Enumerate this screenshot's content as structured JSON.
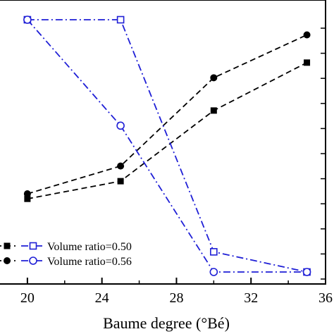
{
  "chart_data": {
    "type": "line",
    "xlabel": "Baume degree (°Bé)",
    "ylabel": "",
    "xlim": [
      18,
      36
    ],
    "ylim": [
      0,
      100
    ],
    "xticks": [
      20,
      24,
      28,
      32,
      36
    ],
    "x": [
      20,
      25,
      30,
      35
    ],
    "grid": false,
    "legend_position": "bottom-left",
    "series": [
      {
        "name": "",
        "axis": "left",
        "marker": "filled-square",
        "color": "#000000",
        "dash": "dashed",
        "values": [
          29,
          36,
          64,
          83
        ]
      },
      {
        "name": "",
        "axis": "left",
        "marker": "filled-circle",
        "color": "#000000",
        "dash": "dashed",
        "values": [
          31,
          42,
          77,
          94
        ]
      },
      {
        "name": "Volume ratio=0.50",
        "axis": "right",
        "marker": "open-square",
        "color": "#1f1fd6",
        "dash": "dashdot",
        "values": [
          100,
          100,
          8,
          0
        ]
      },
      {
        "name": "Volume ratio=0.56",
        "axis": "right",
        "marker": "open-circle",
        "color": "#1f1fd6",
        "dash": "dashdot",
        "values": [
          100,
          58,
          0,
          0
        ]
      }
    ]
  }
}
